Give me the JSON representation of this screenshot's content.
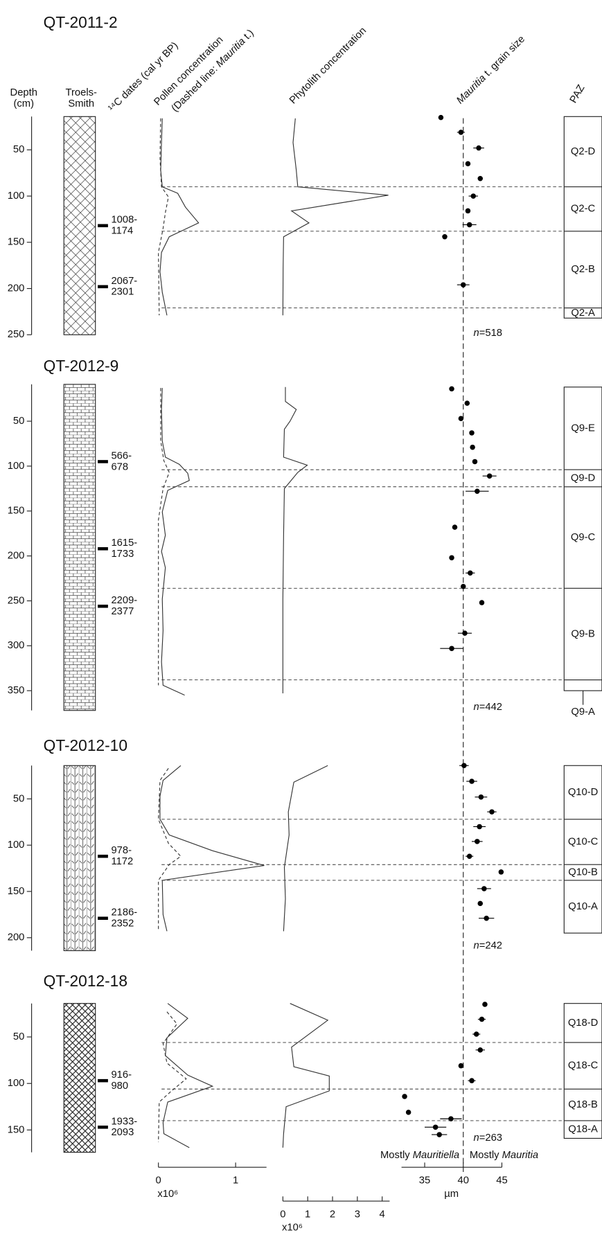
{
  "chart_data": {
    "type": "stratigraphic",
    "headers": {
      "depth": [
        "Depth",
        "(cm)"
      ],
      "troels_smith": [
        "Troels-",
        "Smith"
      ],
      "dates": "¹⁴C dates (cal yr BP)",
      "pollen": "Pollen concentration",
      "pollen_note": [
        "(Dashed line: ",
        "Mauritia",
        " t.)"
      ],
      "phytolith": "Phytolith concentration",
      "grain": [
        "Mauritia",
        " t. grain size"
      ],
      "paz": "PAZ"
    },
    "axes": {
      "pollen": {
        "xlim": [
          0,
          1.4
        ],
        "xticks": [
          0,
          1
        ],
        "unit": "x10⁶"
      },
      "phytolith": {
        "xlim": [
          0,
          4.3
        ],
        "xticks": [
          0,
          1,
          2,
          3,
          4
        ],
        "unit": "x10⁶"
      },
      "grain": {
        "xlim": [
          32,
          45
        ],
        "xticks": [
          35,
          40,
          45
        ],
        "unit": "µm",
        "reference": 40,
        "left_note": [
          "Mostly ",
          "Mauritiella"
        ],
        "right_note": [
          "Mostly ",
          "Mauritia"
        ]
      }
    },
    "cores": [
      {
        "title": "QT-2011-2",
        "ylim": [
          14,
          250
        ],
        "yticks": [
          50,
          100,
          150,
          200,
          250
        ],
        "dates": [
          {
            "depth": 132,
            "label": [
              "1008-",
              "1174"
            ]
          },
          {
            "depth": 198,
            "label": [
              "2067-",
              "2301"
            ]
          }
        ],
        "pollen": {
          "depth": [
            16,
            42,
            72,
            90,
            97,
            112,
            129,
            144,
            161,
            182,
            204,
            229
          ],
          "values": [
            0.05,
            0.04,
            0.03,
            0.05,
            0.25,
            0.35,
            0.52,
            0.14,
            0.04,
            0.02,
            0.05,
            0.11
          ]
        },
        "mauritia": {
          "depth": [
            16,
            59,
            90,
            101,
            118,
            135,
            161,
            229
          ],
          "values": [
            0.03,
            0.02,
            0.04,
            0.13,
            0.09,
            0.06,
            0.0,
            0.01
          ]
        },
        "phytolith": {
          "depth": [
            16,
            42,
            72,
            90,
            99,
            116,
            129,
            144,
            178,
            229
          ],
          "values": [
            0.5,
            0.41,
            0.54,
            0.6,
            4.25,
            0.35,
            1.05,
            0.03,
            0.01,
            0
          ]
        },
        "grain": {
          "depth": [
            15,
            31,
            48,
            65,
            81,
            100,
            116,
            131,
            144,
            196
          ],
          "values": [
            37.1,
            39.7,
            42.0,
            40.6,
            42.2,
            41.3,
            40.6,
            40.8,
            37.6,
            40.0
          ],
          "errors": [
            null,
            0.5,
            0.7,
            null,
            null,
            0.6,
            null,
            0.9,
            null,
            0.8
          ]
        },
        "zones": {
          "bounds": [
            14,
            90,
            138,
            221,
            232
          ],
          "names": [
            "Q2-D",
            "Q2-C",
            "Q2-B",
            "Q2-A"
          ]
        },
        "n": [
          "n",
          "=518"
        ]
      },
      {
        "title": "QT-2012-9",
        "ylim": [
          9,
          372
        ],
        "yticks": [
          50,
          100,
          150,
          200,
          250,
          300,
          350
        ],
        "dates": [
          {
            "depth": 95,
            "label": [
              "566-",
              "678"
            ]
          },
          {
            "depth": 192,
            "label": [
              "1615-",
              "1733"
            ]
          },
          {
            "depth": 256,
            "label": [
              "2209-",
              "2377"
            ]
          }
        ],
        "pollen": {
          "depth": [
            13,
            37,
            72,
            90,
            98,
            108,
            116,
            127,
            151,
            177,
            195,
            213,
            248,
            283,
            318,
            344,
            355
          ],
          "values": [
            0.05,
            0.04,
            0.05,
            0.09,
            0.27,
            0.38,
            0.4,
            0.12,
            0.05,
            0.09,
            0.04,
            0.09,
            0.05,
            0.06,
            0.04,
            0.06,
            0.34
          ]
        },
        "mauritia": {
          "depth": [
            13,
            72,
            94,
            107,
            125,
            160,
            344
          ],
          "values": [
            0.03,
            0.03,
            0.07,
            0.14,
            0.06,
            0.0,
            0.0
          ]
        },
        "phytolith": {
          "depth": [
            12,
            28,
            37,
            50,
            59,
            90,
            99,
            107,
            125,
            177,
            248,
            353
          ],
          "values": [
            0.1,
            0.1,
            0.54,
            0.29,
            0.06,
            0.03,
            0.98,
            0.6,
            0.06,
            0.03,
            0.0,
            0.0
          ]
        },
        "grain": {
          "depth": [
            14,
            30,
            47,
            63,
            79,
            95,
            111,
            128,
            168,
            202,
            219,
            234,
            252,
            286,
            303
          ],
          "values": [
            38.5,
            40.5,
            39.7,
            41.1,
            41.2,
            41.5,
            43.4,
            41.8,
            38.9,
            38.5,
            40.9,
            40.0,
            42.4,
            40.2,
            38.5
          ],
          "errors": [
            null,
            null,
            null,
            null,
            null,
            null,
            0.9,
            1.5,
            null,
            null,
            0.6,
            null,
            null,
            0.9,
            1.5
          ]
        },
        "zones": {
          "bounds": [
            12,
            104,
            123,
            236,
            338,
            350
          ],
          "names": [
            "Q9-E",
            "Q9-D",
            "Q9-C",
            "Q9-B",
            "Q9-A"
          ]
        },
        "n": [
          "n",
          "=442"
        ]
      },
      {
        "title": "QT-2012-10",
        "ylim": [
          14,
          214
        ],
        "yticks": [
          50,
          100,
          150,
          200
        ],
        "dates": [
          {
            "depth": 112,
            "label": [
              "978-",
              "1172"
            ]
          },
          {
            "depth": 179,
            "label": [
              "2186-",
              "2352"
            ]
          }
        ],
        "pollen": {
          "depth": [
            14,
            30,
            47,
            72,
            89,
            106,
            122,
            138,
            175,
            193
          ],
          "values": [
            0.29,
            0.06,
            0.02,
            0.02,
            0.14,
            0.7,
            1.37,
            0.05,
            0.06,
            0.11
          ]
        },
        "mauritia": {
          "depth": [
            17,
            30,
            72,
            98,
            112,
            121,
            138,
            193
          ],
          "values": [
            0.13,
            0.02,
            0.0,
            0.13,
            0.29,
            0.14,
            0.0,
            0.0
          ]
        },
        "phytolith": {
          "depth": [
            14,
            32,
            64,
            89,
            124,
            158,
            193
          ],
          "values": [
            1.81,
            0.44,
            0.22,
            0.25,
            0.06,
            0.1,
            0.03
          ]
        },
        "grain": {
          "depth": [
            14,
            31,
            48,
            64,
            80,
            96,
            112,
            129,
            147,
            163,
            179
          ],
          "values": [
            40.1,
            41.1,
            42.3,
            43.7,
            42.1,
            41.8,
            40.8,
            44.9,
            42.7,
            42.2,
            43.0
          ],
          "errors": [
            0.6,
            0.7,
            0.8,
            0.6,
            0.8,
            0.7,
            0.5,
            null,
            0.9,
            null,
            1.0
          ]
        },
        "zones": {
          "bounds": [
            14,
            72,
            121,
            138,
            195
          ],
          "names": [
            "Q10-D",
            "Q10-C",
            "Q10-B",
            "Q10-A"
          ]
        },
        "n": [
          "n",
          "=242"
        ]
      },
      {
        "title": "QT-2012-18",
        "ylim": [
          14,
          174
        ],
        "yticks": [
          50,
          100,
          150
        ],
        "dates": [
          {
            "depth": 97,
            "label": [
              "916-",
              "980"
            ]
          },
          {
            "depth": 147,
            "label": [
              "1933-",
              "2093"
            ]
          }
        ],
        "pollen": {
          "depth": [
            14,
            30,
            51,
            70,
            91,
            103,
            120,
            142,
            154,
            169
          ],
          "values": [
            0.12,
            0.38,
            0.11,
            0.09,
            0.38,
            0.7,
            0.12,
            0.06,
            0.07,
            0.4
          ]
        },
        "mauritia": {
          "depth": [
            23,
            36,
            57,
            78,
            95,
            108,
            120,
            163
          ],
          "values": [
            0.11,
            0.24,
            0.06,
            0.11,
            0.36,
            0.17,
            0.01,
            0.0
          ]
        },
        "phytolith": {
          "depth": [
            14,
            32,
            61,
            82,
            92,
            108,
            125,
            154,
            169
          ],
          "values": [
            0.29,
            1.81,
            0.35,
            0.44,
            1.87,
            1.87,
            0.13,
            0.03,
            0.0
          ]
        },
        "grain": {
          "depth": [
            15,
            31,
            47,
            64,
            81,
            97,
            114,
            131,
            138,
            147,
            155
          ],
          "values": [
            42.8,
            42.4,
            41.7,
            42.2,
            39.7,
            41.1,
            32.4,
            32.9,
            38.4,
            36.4,
            36.9
          ],
          "errors": [
            null,
            0.5,
            0.5,
            0.6,
            null,
            0.5,
            null,
            null,
            1.4,
            1.4,
            1.0
          ]
        },
        "zones": {
          "bounds": [
            14,
            56,
            106,
            140,
            159
          ],
          "names": [
            "Q18-D",
            "Q18-C",
            "Q18-B",
            "Q18-A"
          ]
        },
        "n": [
          "n",
          "=263"
        ]
      }
    ]
  }
}
